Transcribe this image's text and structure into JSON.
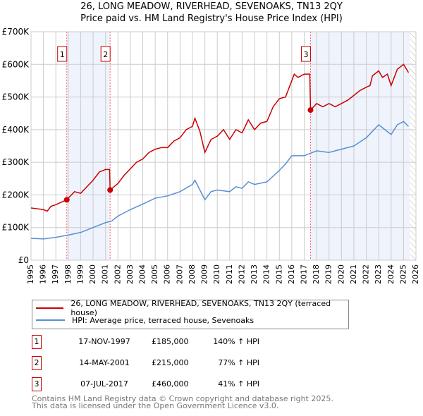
{
  "title_line1": "26, LONG MEADOW, RIVERHEAD, SEVENOAKS, TN13 2QY",
  "title_line2": "Price paid vs. HM Land Registry's House Price Index (HPI)",
  "colors": {
    "price": "#cc0000",
    "hpi": "#5b8fd4",
    "shade": "#eef3fc"
  },
  "chart_data": {
    "type": "line",
    "title": "26, LONG MEADOW, RIVERHEAD, SEVENOAKS, TN13 2QY — Price paid vs. HM Land Registry's House Price Index (HPI)",
    "xlim": [
      1995,
      2026
    ],
    "ylim": [
      0,
      700000
    ],
    "x_ticks": [
      "1995",
      "1996",
      "1997",
      "1998",
      "1999",
      "2000",
      "2001",
      "2002",
      "2003",
      "2004",
      "2005",
      "2006",
      "2007",
      "2008",
      "2009",
      "2010",
      "2011",
      "2012",
      "2013",
      "2014",
      "2015",
      "2016",
      "2017",
      "2018",
      "2019",
      "2020",
      "2021",
      "2022",
      "2023",
      "2024",
      "2025",
      "2026"
    ],
    "y_ticks": [
      {
        "v": 0,
        "label": "£0"
      },
      {
        "v": 100000,
        "label": "£100K"
      },
      {
        "v": 200000,
        "label": "£200K"
      },
      {
        "v": 300000,
        "label": "£300K"
      },
      {
        "v": 400000,
        "label": "£400K"
      },
      {
        "v": 500000,
        "label": "£500K"
      },
      {
        "v": 600000,
        "label": "£600K"
      },
      {
        "v": 700000,
        "label": "£700K"
      }
    ],
    "grid": true,
    "shaded_periods": [
      [
        1997.88,
        2001.37
      ],
      [
        2017.51,
        2025.5
      ]
    ],
    "hatched_from": 2025.5,
    "series": [
      {
        "name": "26, LONG MEADOW, RIVERHEAD, SEVENOAKS, TN13 2QY (terraced house)",
        "points": [
          [
            1995,
            160000
          ],
          [
            1996,
            155000
          ],
          [
            1996.3,
            150000
          ],
          [
            1996.6,
            165000
          ],
          [
            1997,
            170000
          ],
          [
            1997.88,
            185000
          ],
          [
            1998.5,
            210000
          ],
          [
            1999,
            205000
          ],
          [
            1999.5,
            225000
          ],
          [
            2000,
            245000
          ],
          [
            2000.5,
            270000
          ],
          [
            2001,
            278000
          ],
          [
            2001.33,
            278000
          ],
          [
            2001.37,
            215000
          ],
          [
            2002,
            235000
          ],
          [
            2002.5,
            260000
          ],
          [
            2003,
            280000
          ],
          [
            2003.5,
            300000
          ],
          [
            2004,
            310000
          ],
          [
            2004.5,
            330000
          ],
          [
            2005,
            340000
          ],
          [
            2005.5,
            345000
          ],
          [
            2006,
            345000
          ],
          [
            2006.5,
            365000
          ],
          [
            2007,
            375000
          ],
          [
            2007.5,
            400000
          ],
          [
            2008,
            410000
          ],
          [
            2008.2,
            435000
          ],
          [
            2008.6,
            395000
          ],
          [
            2009,
            330000
          ],
          [
            2009.5,
            370000
          ],
          [
            2010,
            380000
          ],
          [
            2010.5,
            400000
          ],
          [
            2011,
            370000
          ],
          [
            2011.5,
            400000
          ],
          [
            2012,
            390000
          ],
          [
            2012.5,
            430000
          ],
          [
            2013,
            400000
          ],
          [
            2013.5,
            420000
          ],
          [
            2014,
            425000
          ],
          [
            2014.5,
            470000
          ],
          [
            2015,
            495000
          ],
          [
            2015.5,
            500000
          ],
          [
            2015.8,
            530000
          ],
          [
            2016.2,
            570000
          ],
          [
            2016.5,
            560000
          ],
          [
            2017,
            570000
          ],
          [
            2017.45,
            570000
          ],
          [
            2017.51,
            460000
          ],
          [
            2018,
            480000
          ],
          [
            2018.5,
            470000
          ],
          [
            2019,
            480000
          ],
          [
            2019.5,
            470000
          ],
          [
            2020,
            480000
          ],
          [
            2020.5,
            490000
          ],
          [
            2021,
            505000
          ],
          [
            2021.5,
            520000
          ],
          [
            2022,
            530000
          ],
          [
            2022.3,
            535000
          ],
          [
            2022.5,
            565000
          ],
          [
            2023,
            580000
          ],
          [
            2023.3,
            560000
          ],
          [
            2023.7,
            570000
          ],
          [
            2024,
            535000
          ],
          [
            2024.5,
            585000
          ],
          [
            2025,
            600000
          ],
          [
            2025.4,
            575000
          ]
        ]
      },
      {
        "name": "HPI: Average price, terraced house, Sevenoaks",
        "points": [
          [
            1995,
            67000
          ],
          [
            1996,
            65000
          ],
          [
            1997,
            70000
          ],
          [
            1998,
            77000
          ],
          [
            1999,
            85000
          ],
          [
            2000,
            100000
          ],
          [
            2001,
            115000
          ],
          [
            2001.5,
            120000
          ],
          [
            2002,
            135000
          ],
          [
            2003,
            155000
          ],
          [
            2004,
            172000
          ],
          [
            2005,
            190000
          ],
          [
            2006,
            197000
          ],
          [
            2007,
            210000
          ],
          [
            2008,
            232000
          ],
          [
            2008.2,
            245000
          ],
          [
            2009,
            185000
          ],
          [
            2009.5,
            210000
          ],
          [
            2010,
            215000
          ],
          [
            2011,
            210000
          ],
          [
            2011.5,
            225000
          ],
          [
            2012,
            220000
          ],
          [
            2012.5,
            240000
          ],
          [
            2013,
            232000
          ],
          [
            2014,
            240000
          ],
          [
            2015,
            275000
          ],
          [
            2015.5,
            295000
          ],
          [
            2016,
            320000
          ],
          [
            2017,
            320000
          ],
          [
            2018,
            335000
          ],
          [
            2019,
            330000
          ],
          [
            2020,
            340000
          ],
          [
            2021,
            350000
          ],
          [
            2022,
            375000
          ],
          [
            2022.5,
            395000
          ],
          [
            2023,
            415000
          ],
          [
            2023.5,
            400000
          ],
          [
            2024,
            385000
          ],
          [
            2024.5,
            415000
          ],
          [
            2025,
            425000
          ],
          [
            2025.4,
            410000
          ]
        ]
      }
    ],
    "sales": [
      {
        "label": "1",
        "x": 1997.88,
        "y": 185000,
        "date": "17-NOV-1997",
        "price": "£185,000",
        "hpi": "140% ↑ HPI"
      },
      {
        "label": "2",
        "x": 2001.37,
        "y": 215000,
        "date": "14-MAY-2001",
        "price": "£215,000",
        "hpi": "77% ↑ HPI"
      },
      {
        "label": "3",
        "x": 2017.51,
        "y": 460000,
        "date": "07-JUL-2017",
        "price": "£460,000",
        "hpi": "41% ↑ HPI"
      }
    ],
    "legend": "below"
  },
  "footer1": "Contains HM Land Registry data © Crown copyright and database right 2025.",
  "footer2": "This data is licensed under the Open Government Licence v3.0."
}
